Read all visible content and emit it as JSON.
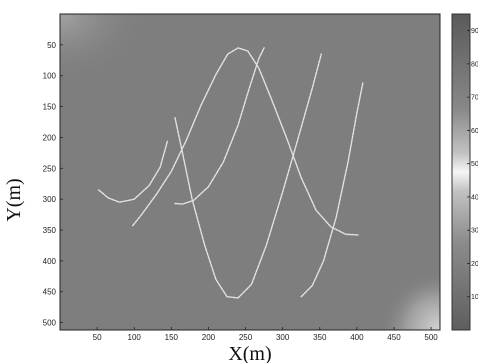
{
  "chart_data": {
    "type": "heatmap",
    "title": "",
    "xlabel": "X(m)",
    "ylabel": "Y(m)",
    "xlim": [
      0,
      512
    ],
    "ylim": [
      512,
      0
    ],
    "xticks": [
      50,
      100,
      150,
      200,
      250,
      300,
      350,
      400,
      450,
      500
    ],
    "yticks": [
      50,
      100,
      150,
      200,
      250,
      300,
      350,
      400,
      450,
      500
    ],
    "colorbar": {
      "range": [
        0,
        95
      ],
      "ticks": [
        "10",
        "20",
        "30",
        "40",
        "50",
        "60",
        "70",
        "80",
        "90"
      ]
    },
    "background_level": 45,
    "grid": false,
    "series": [
      {
        "points": [
          [
            52,
            285
          ],
          [
            65,
            298
          ],
          [
            80,
            305
          ],
          [
            100,
            300
          ],
          [
            120,
            278
          ],
          [
            135,
            248
          ],
          [
            145,
            205
          ]
        ]
      },
      {
        "points": [
          [
            98,
            343
          ],
          [
            110,
            325
          ],
          [
            130,
            292
          ],
          [
            150,
            255
          ],
          [
            170,
            205
          ],
          [
            190,
            148
          ],
          [
            210,
            98
          ],
          [
            226,
            65
          ],
          [
            240,
            55
          ],
          [
            253,
            60
          ],
          [
            268,
            88
          ],
          [
            285,
            138
          ],
          [
            305,
            200
          ],
          [
            325,
            265
          ],
          [
            345,
            318
          ],
          [
            365,
            345
          ],
          [
            385,
            357
          ],
          [
            403,
            358
          ]
        ]
      },
      {
        "points": [
          [
            155,
            168
          ],
          [
            165,
            225
          ],
          [
            178,
            300
          ],
          [
            195,
            375
          ],
          [
            210,
            430
          ],
          [
            225,
            458
          ],
          [
            240,
            460
          ],
          [
            258,
            438
          ],
          [
            278,
            375
          ],
          [
            300,
            288
          ],
          [
            320,
            205
          ],
          [
            340,
            120
          ],
          [
            352,
            65
          ]
        ]
      },
      {
        "points": [
          [
            155,
            307
          ],
          [
            165,
            308
          ],
          [
            180,
            302
          ],
          [
            200,
            280
          ],
          [
            220,
            240
          ],
          [
            240,
            180
          ],
          [
            255,
            120
          ],
          [
            268,
            72
          ],
          [
            275,
            55
          ]
        ]
      },
      {
        "points": [
          [
            325,
            458
          ],
          [
            340,
            440
          ],
          [
            355,
            400
          ],
          [
            372,
            330
          ],
          [
            388,
            240
          ],
          [
            400,
            160
          ],
          [
            408,
            112
          ]
        ]
      }
    ]
  }
}
